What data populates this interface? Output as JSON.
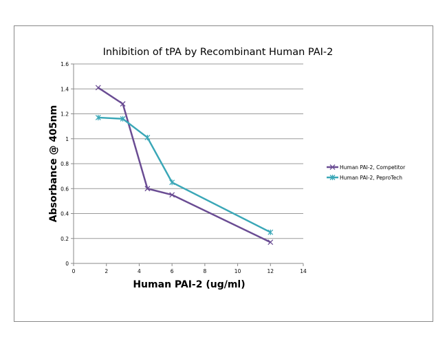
{
  "chart_data": {
    "type": "line",
    "title": "Inhibition of tPA by Recombinant Human PAI-2",
    "xlabel": "Human PAI-2 (ug/ml)",
    "ylabel": "Absorbance @ 405nm",
    "xlim": [
      0,
      14
    ],
    "ylim": [
      0,
      1.6
    ],
    "xticks": [
      "0",
      "2",
      "4",
      "6",
      "8",
      "10",
      "12",
      "14"
    ],
    "yticks": [
      "0",
      "0.2",
      "0.4",
      "0.6",
      "0.8",
      "1",
      "1.2",
      "1.4",
      "1.6"
    ],
    "grid": "horizontal",
    "legend_position": "right",
    "series": [
      {
        "name": "Human PAI-2, Competitor",
        "color": "#6a4c93",
        "marker": "x",
        "x": [
          1.5,
          3,
          4.5,
          6,
          12
        ],
        "y": [
          1.41,
          1.28,
          0.6,
          0.55,
          0.17
        ]
      },
      {
        "name": "Human PAI-2, PeproTech",
        "color": "#3aa7b7",
        "marker": "star",
        "x": [
          1.5,
          3,
          4.5,
          6,
          12
        ],
        "y": [
          1.17,
          1.16,
          1.01,
          0.65,
          0.25
        ]
      }
    ]
  }
}
